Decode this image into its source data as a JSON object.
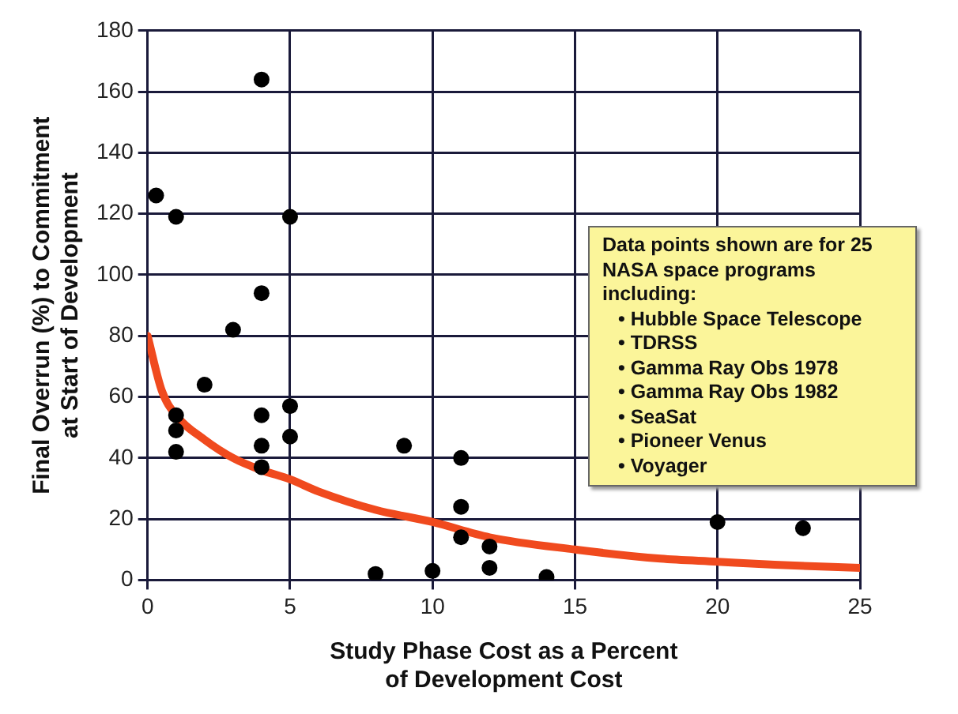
{
  "chart_data": {
    "type": "scatter",
    "xlabel": "Study Phase Cost as a Percent\nof Development Cost",
    "ylabel": "Final Overrun (%) to Commitment\nat Start of Development",
    "xlim": [
      0,
      25
    ],
    "xticks": [
      0,
      5,
      10,
      15,
      20,
      25
    ],
    "ylim": [
      0,
      180
    ],
    "yticks": [
      0,
      20,
      40,
      60,
      80,
      100,
      120,
      140,
      160,
      180
    ],
    "grid": true,
    "legend": false,
    "marker": "circle",
    "annotations": [
      "Data points shown are for 25 NASA space programs including:",
      "• Hubble Space Telescope",
      "• TDRSS",
      "• Gamma Ray Obs 1978",
      "• Gamma Ray Obs 1982",
      "• SeaSat",
      "• Pioneer Venus",
      "• Voyager"
    ],
    "series": [
      {
        "color": "#000000",
        "x": [
          0.3,
          1,
          1,
          1,
          1,
          2,
          3,
          4,
          4,
          4,
          4,
          4,
          5,
          5,
          5,
          8,
          9,
          10,
          11,
          11,
          11,
          12,
          12,
          14,
          20,
          23
        ],
        "values": [
          126,
          119,
          54,
          49,
          42,
          64,
          82,
          164,
          94,
          54,
          44,
          37,
          119,
          57,
          47,
          2,
          44,
          3,
          40,
          24,
          14,
          11,
          4,
          1,
          19,
          17
        ]
      },
      {
        "type": "line",
        "color": "#f04a1e",
        "line_style": "solid",
        "marker": "none",
        "x": [
          0,
          0.5,
          1,
          2,
          3,
          4,
          5,
          6,
          8,
          10,
          12,
          15,
          18,
          20,
          22,
          25
        ],
        "values": [
          80,
          62,
          54,
          46,
          40,
          36,
          33,
          29,
          23,
          19,
          14,
          10,
          7,
          6,
          5,
          4
        ]
      }
    ]
  }
}
